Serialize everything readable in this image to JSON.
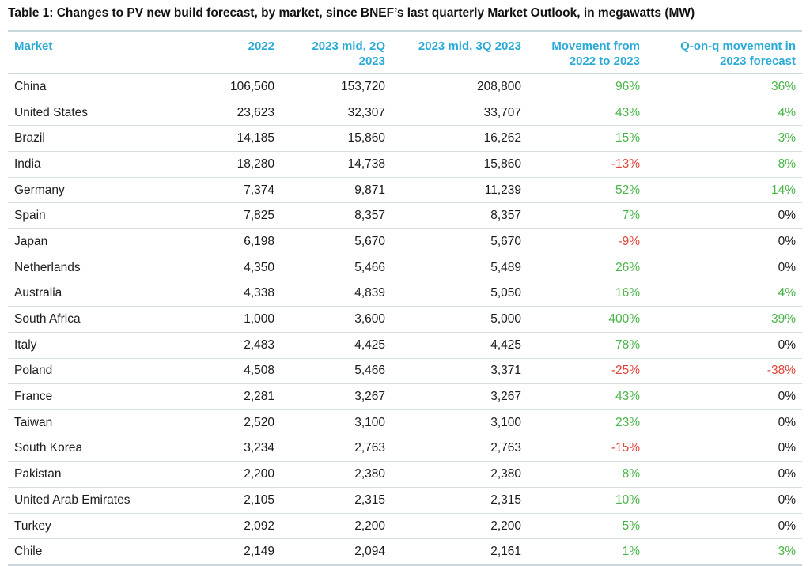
{
  "caption": "Table 1: Changes to PV new build forecast, by market, since BNEF’s last quarterly Market Outlook, in megawatts (MW)",
  "headers": {
    "market": "Market",
    "y2022": "2022",
    "mid2q": "2023 mid, 2Q 2023",
    "mid3q": "2023 mid, 3Q 2023",
    "movement": "Movement from 2022 to 2023",
    "qoq": "Q-on-q movement in 2023 forecast"
  },
  "colors": {
    "header": "#2aaad6",
    "positive": "#49b548",
    "negative": "#e0453a"
  },
  "rows": [
    {
      "market": "China",
      "y2022": "106,560",
      "mid2q": "153,720",
      "mid3q": "208,800",
      "movement": "96%",
      "qoq": "36%"
    },
    {
      "market": "United States",
      "y2022": "23,623",
      "mid2q": "32,307",
      "mid3q": "33,707",
      "movement": "43%",
      "qoq": "4%"
    },
    {
      "market": "Brazil",
      "y2022": "14,185",
      "mid2q": "15,860",
      "mid3q": "16,262",
      "movement": "15%",
      "qoq": "3%"
    },
    {
      "market": "India",
      "y2022": "18,280",
      "mid2q": "14,738",
      "mid3q": "15,860",
      "movement": "-13%",
      "qoq": "8%"
    },
    {
      "market": "Germany",
      "y2022": "7,374",
      "mid2q": "9,871",
      "mid3q": "11,239",
      "movement": "52%",
      "qoq": "14%"
    },
    {
      "market": "Spain",
      "y2022": "7,825",
      "mid2q": "8,357",
      "mid3q": "8,357",
      "movement": "7%",
      "qoq": "0%"
    },
    {
      "market": "Japan",
      "y2022": "6,198",
      "mid2q": "5,670",
      "mid3q": "5,670",
      "movement": "-9%",
      "qoq": "0%"
    },
    {
      "market": "Netherlands",
      "y2022": "4,350",
      "mid2q": "5,466",
      "mid3q": "5,489",
      "movement": "26%",
      "qoq": "0%"
    },
    {
      "market": "Australia",
      "y2022": "4,338",
      "mid2q": "4,839",
      "mid3q": "5,050",
      "movement": "16%",
      "qoq": "4%"
    },
    {
      "market": "South Africa",
      "y2022": "1,000",
      "mid2q": "3,600",
      "mid3q": "5,000",
      "movement": "400%",
      "qoq": "39%"
    },
    {
      "market": "Italy",
      "y2022": "2,483",
      "mid2q": "4,425",
      "mid3q": "4,425",
      "movement": "78%",
      "qoq": "0%"
    },
    {
      "market": "Poland",
      "y2022": "4,508",
      "mid2q": "5,466",
      "mid3q": "3,371",
      "movement": "-25%",
      "qoq": "-38%"
    },
    {
      "market": "France",
      "y2022": "2,281",
      "mid2q": "3,267",
      "mid3q": "3,267",
      "movement": "43%",
      "qoq": "0%"
    },
    {
      "market": "Taiwan",
      "y2022": "2,520",
      "mid2q": "3,100",
      "mid3q": "3,100",
      "movement": "23%",
      "qoq": "0%"
    },
    {
      "market": "South Korea",
      "y2022": "3,234",
      "mid2q": "2,763",
      "mid3q": "2,763",
      "movement": "-15%",
      "qoq": "0%"
    },
    {
      "market": "Pakistan",
      "y2022": "2,200",
      "mid2q": "2,380",
      "mid3q": "2,380",
      "movement": "8%",
      "qoq": "0%"
    },
    {
      "market": "United Arab Emirates",
      "y2022": "2,105",
      "mid2q": "2,315",
      "mid3q": "2,315",
      "movement": "10%",
      "qoq": "0%"
    },
    {
      "market": "Turkey",
      "y2022": "2,092",
      "mid2q": "2,200",
      "mid3q": "2,200",
      "movement": "5%",
      "qoq": "0%"
    },
    {
      "market": "Chile",
      "y2022": "2,149",
      "mid2q": "2,094",
      "mid3q": "2,161",
      "movement": "1%",
      "qoq": "3%"
    }
  ]
}
